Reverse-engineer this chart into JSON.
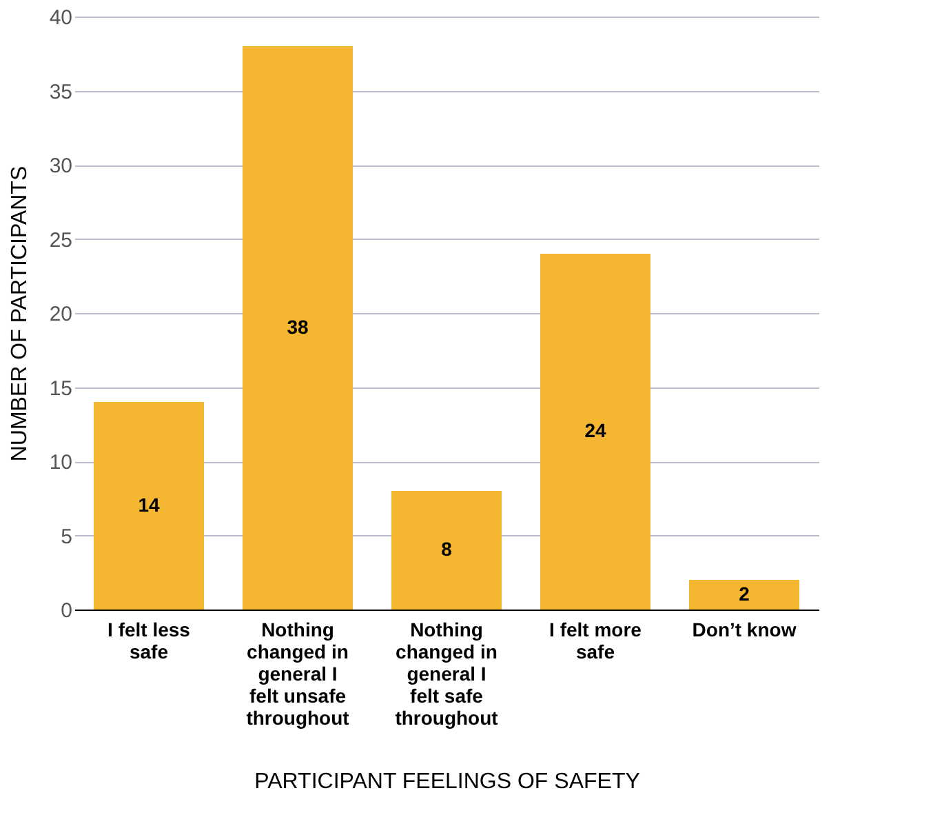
{
  "chart_data": {
    "type": "bar",
    "xlabel": "PARTICIPANT FEELINGS OF SAFETY",
    "ylabel": "NUMBER OF PARTICIPANTS",
    "categories": [
      "I felt less safe",
      "Nothing changed in general I felt unsafe throughout",
      "Nothing changed in general I felt safe throughout",
      "I felt more safe",
      "Don’t know"
    ],
    "values": [
      14,
      38,
      8,
      24,
      2
    ],
    "color": "#f5b731",
    "ylim": [
      0,
      40
    ],
    "yticks": [
      0,
      5,
      10,
      15,
      20,
      25,
      30,
      35,
      40
    ],
    "grid": "y",
    "data_labels": true
  }
}
